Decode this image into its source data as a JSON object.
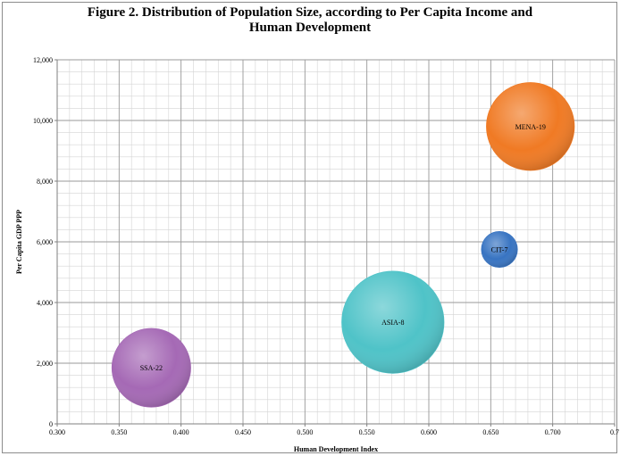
{
  "chart_data": {
    "type": "bubble",
    "title_line1": "Figure 2. Distribution of Population Size, according to Per Capita Income and",
    "title_line2": "Human Development",
    "xlabel": "Human Development Index",
    "ylabel": "Per Capita GDP PPP",
    "xlim": [
      0.3,
      0.75
    ],
    "ylim": [
      0,
      12000
    ],
    "x_ticks": [
      "0.300",
      "0.350",
      "0.400",
      "0.450",
      "0.500",
      "0.550",
      "0.600",
      "0.650",
      "0.700",
      "0.7"
    ],
    "y_ticks": [
      "0",
      "2,000",
      "4,000",
      "6,000",
      "8,000",
      "10,000",
      "12,000"
    ],
    "grid": true,
    "points": [
      {
        "label": "SSA-22",
        "x": 0.376,
        "y": 1850,
        "relative_size": 0.77,
        "color": "#a569b5"
      },
      {
        "label": "ASIA-8",
        "x": 0.571,
        "y": 3350,
        "relative_size": 1.0,
        "color": "#4fc3c8"
      },
      {
        "label": "CIT-7",
        "x": 0.657,
        "y": 5750,
        "relative_size": 0.35,
        "color": "#3874c2"
      },
      {
        "label": "MENA-19",
        "x": 0.682,
        "y": 9800,
        "relative_size": 0.86,
        "color": "#f07a24"
      }
    ]
  }
}
